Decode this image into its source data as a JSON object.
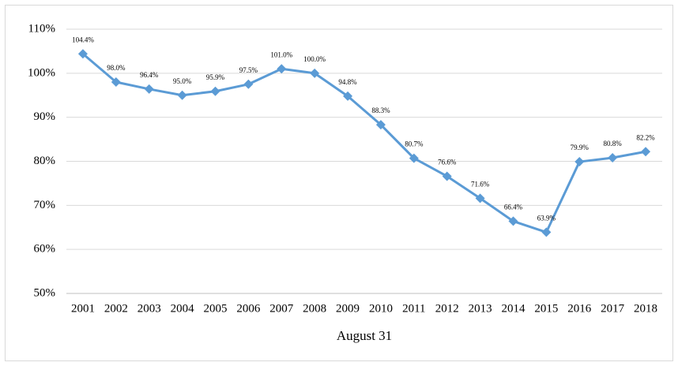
{
  "chart_data": {
    "type": "line",
    "x_label": "August 31",
    "categories": [
      "2001",
      "2002",
      "2003",
      "2004",
      "2005",
      "2006",
      "2007",
      "2008",
      "2009",
      "2010",
      "2011",
      "2012",
      "2013",
      "2014",
      "2015",
      "2016",
      "2017",
      "2018"
    ],
    "series": [
      {
        "color": "#5b9bd5",
        "values": [
          104.4,
          98.0,
          96.4,
          95.0,
          95.9,
          97.5,
          101.0,
          100.0,
          94.8,
          88.3,
          80.7,
          76.6,
          71.6,
          66.4,
          63.9,
          79.9,
          80.8,
          82.2
        ],
        "value_labels": [
          "104.4%",
          "98.0%",
          "96.4%",
          "95.0%",
          "95.9%",
          "97.5%",
          "101.0%",
          "100.0%",
          "94.8%",
          "88.3%",
          "80.7%",
          "76.6%",
          "71.6%",
          "66.4%",
          "63.9%",
          "79.9%",
          "80.8%",
          "82.2%"
        ]
      }
    ],
    "ylim": [
      50,
      110
    ],
    "yticks": [
      {
        "value": 50,
        "label": "50%"
      },
      {
        "value": 60,
        "label": "60%"
      },
      {
        "value": 70,
        "label": "70%"
      },
      {
        "value": 80,
        "label": "80%"
      },
      {
        "value": 90,
        "label": "90%"
      },
      {
        "value": 100,
        "label": "100%"
      },
      {
        "value": 110,
        "label": "110%"
      }
    ],
    "grid": true,
    "marker": "diamond"
  }
}
